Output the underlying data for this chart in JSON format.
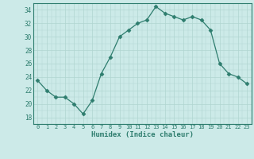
{
  "x": [
    0,
    1,
    2,
    3,
    4,
    5,
    6,
    7,
    8,
    9,
    10,
    11,
    12,
    13,
    14,
    15,
    16,
    17,
    18,
    19,
    20,
    21,
    22,
    23
  ],
  "y": [
    23.5,
    22.0,
    21.0,
    21.0,
    20.0,
    18.5,
    20.5,
    24.5,
    27.0,
    30.0,
    31.0,
    32.0,
    32.5,
    34.5,
    33.5,
    33.0,
    32.5,
    33.0,
    32.5,
    31.0,
    26.0,
    24.5,
    24.0,
    23.0
  ],
  "xlabel": "Humidex (Indice chaleur)",
  "ylim": [
    17,
    35
  ],
  "xlim": [
    -0.5,
    23.5
  ],
  "yticks": [
    18,
    20,
    22,
    24,
    26,
    28,
    30,
    32,
    34
  ],
  "xticks": [
    0,
    1,
    2,
    3,
    4,
    5,
    6,
    7,
    8,
    9,
    10,
    11,
    12,
    13,
    14,
    15,
    16,
    17,
    18,
    19,
    20,
    21,
    22,
    23
  ],
  "line_color": "#2e7d6e",
  "marker": "D",
  "marker_size": 2.5,
  "bg_color": "#cceae8",
  "grid_color": "#b0d5d0",
  "font_color": "#2e7d6e"
}
